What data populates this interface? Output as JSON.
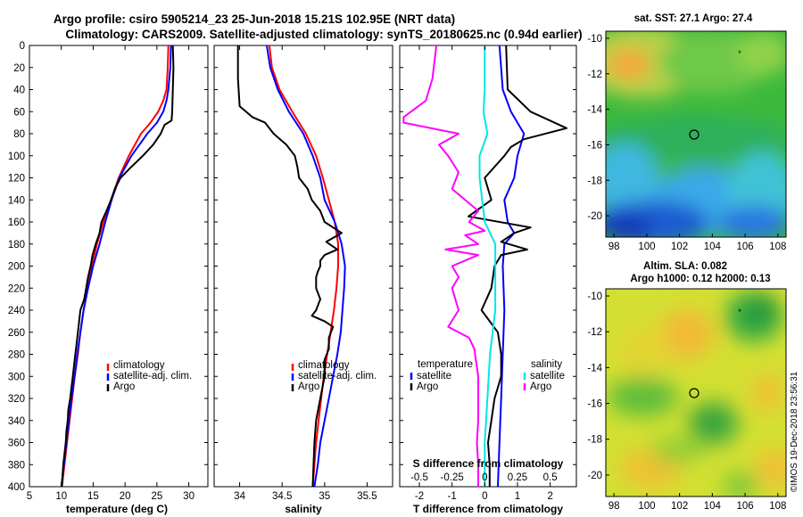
{
  "figure": {
    "title_line1": "Argo profile: csiro 5905214_23 25-Jun-2018 15.21S 102.95E (NRT data)",
    "title_line2": "Climatology: CARS2009. Satellite-adjusted climatology: synTS_20180625.nc (0.94d earlier)",
    "watermark": "©IMOS 19-Dec-2018 23:56:31"
  },
  "colors": {
    "climatology": "#ff0000",
    "satellite": "#0000ff",
    "argo": "#000000",
    "sat_sal": "#00e5ee",
    "argo_sal": "#ff00ff"
  },
  "chart_data": [
    {
      "type": "line",
      "title": "",
      "xlabel": "temperature (deg C)",
      "ylabel": "",
      "xlim": [
        5,
        33
      ],
      "ylim": [
        400,
        0
      ],
      "xticks": [
        "5",
        "10",
        "15",
        "20",
        "25",
        "30"
      ],
      "xtick_values": [
        5,
        10,
        15,
        20,
        25,
        30
      ],
      "yticks": [
        "0",
        "20",
        "40",
        "60",
        "80",
        "100",
        "120",
        "140",
        "160",
        "180",
        "200",
        "220",
        "240",
        "260",
        "280",
        "300",
        "320",
        "340",
        "360",
        "380",
        "400"
      ],
      "yaxis_shared": true,
      "legend": [
        "climatology",
        "satellite-adj. clim.",
        "Argo"
      ],
      "series": [
        {
          "name": "climatology",
          "color": "climatology",
          "depth": [
            0,
            20,
            40,
            50,
            60,
            70,
            80,
            100,
            120,
            140,
            160,
            180,
            200,
            220,
            240,
            260,
            280,
            300,
            320,
            340,
            360,
            380,
            400
          ],
          "values": [
            26.8,
            26.7,
            26.5,
            26.0,
            25.2,
            24.0,
            22.5,
            20.6,
            19.0,
            17.8,
            16.6,
            15.6,
            14.8,
            14.1,
            13.5,
            13.0,
            12.6,
            12.1,
            11.7,
            11.3,
            10.9,
            10.5,
            10.1
          ]
        },
        {
          "name": "satellite-adj. clim.",
          "color": "satellite",
          "depth": [
            0,
            20,
            40,
            50,
            60,
            70,
            80,
            100,
            120,
            140,
            160,
            180,
            200,
            220,
            240,
            260,
            280,
            300,
            320,
            340,
            360,
            380,
            400
          ],
          "values": [
            27.2,
            27.1,
            26.8,
            26.5,
            26.0,
            25.0,
            23.5,
            21.0,
            19.1,
            17.9,
            16.9,
            16.0,
            15.0,
            14.2,
            13.5,
            13.0,
            12.5,
            12.1,
            11.6,
            11.2,
            10.8,
            10.4,
            10.0
          ]
        },
        {
          "name": "Argo",
          "color": "argo",
          "depth": [
            0,
            20,
            40,
            60,
            68,
            72,
            80,
            90,
            100,
            110,
            120,
            130,
            140,
            150,
            160,
            170,
            180,
            190,
            200,
            210,
            220,
            230,
            240,
            250,
            260,
            270,
            280,
            290,
            300,
            310,
            320,
            330,
            340,
            350,
            360,
            370,
            380,
            390,
            400
          ],
          "values": [
            27.5,
            27.6,
            27.5,
            27.4,
            27.3,
            26.2,
            25.6,
            24.4,
            22.8,
            21.0,
            19.3,
            18.4,
            17.8,
            17.1,
            16.3,
            16.0,
            15.4,
            14.9,
            14.6,
            14.2,
            13.9,
            13.6,
            13.0,
            12.8,
            12.6,
            12.4,
            12.2,
            12.0,
            11.8,
            11.6,
            11.4,
            11.1,
            11.0,
            10.8,
            10.7,
            10.5,
            10.3,
            10.2,
            10.1
          ]
        }
      ]
    },
    {
      "type": "line",
      "xlabel": "salinity",
      "xlim": [
        33.7,
        35.8
      ],
      "ylim": [
        400,
        0
      ],
      "xticks": [
        "34",
        "34.5",
        "35",
        "35.5"
      ],
      "xtick_values": [
        34,
        34.5,
        35,
        35.5
      ],
      "legend": [
        "climatology",
        "satellite-adj. clim.",
        "Argo"
      ],
      "series": [
        {
          "name": "climatology",
          "color": "climatology",
          "depth": [
            0,
            20,
            40,
            60,
            80,
            100,
            120,
            140,
            160,
            180,
            200,
            220,
            240,
            260,
            280,
            300,
            320,
            340,
            360,
            380,
            400
          ],
          "values": [
            34.35,
            34.38,
            34.47,
            34.62,
            34.78,
            34.9,
            34.98,
            35.05,
            35.12,
            35.16,
            35.16,
            35.14,
            35.11,
            35.07,
            35.03,
            34.99,
            34.96,
            34.93,
            34.9,
            34.88,
            34.86
          ]
        },
        {
          "name": "satellite-adj. clim.",
          "color": "satellite",
          "depth": [
            0,
            20,
            40,
            60,
            80,
            100,
            120,
            140,
            160,
            180,
            200,
            220,
            240,
            260,
            280,
            300,
            320,
            340,
            360,
            380,
            400
          ],
          "values": [
            34.32,
            34.36,
            34.45,
            34.58,
            34.75,
            34.86,
            34.95,
            35.0,
            35.12,
            35.2,
            35.24,
            35.23,
            35.21,
            35.19,
            35.15,
            35.1,
            35.05,
            35.0,
            34.95,
            34.92,
            34.88
          ]
        },
        {
          "name": "Argo",
          "color": "argo",
          "depth": [
            0,
            30,
            55,
            65,
            70,
            80,
            90,
            100,
            110,
            120,
            130,
            140,
            150,
            160,
            165,
            170,
            178,
            185,
            190,
            195,
            200,
            205,
            210,
            220,
            230,
            240,
            245,
            250,
            255,
            265,
            275,
            285,
            300,
            320,
            340,
            360,
            380,
            400
          ],
          "values": [
            33.98,
            33.98,
            34.0,
            34.15,
            34.3,
            34.4,
            34.55,
            34.65,
            34.68,
            34.7,
            34.8,
            34.85,
            34.95,
            35.0,
            35.1,
            35.2,
            35.02,
            35.15,
            35.0,
            34.95,
            34.95,
            34.92,
            34.9,
            34.9,
            34.95,
            34.9,
            34.85,
            35.0,
            35.1,
            35.05,
            35.05,
            35.0,
            35.0,
            34.95,
            34.9,
            34.88,
            34.87,
            34.86
          ]
        }
      ]
    },
    {
      "type": "line",
      "xlabel": "T difference from climatology",
      "xlabel_top": "S difference from climatology",
      "xlim": [
        -2.6,
        2.8
      ],
      "xlim_top": [
        -0.65,
        0.7
      ],
      "ylim": [
        400,
        0
      ],
      "xticks": [
        "-2",
        "-1",
        "0",
        "1",
        "2"
      ],
      "xtick_values": [
        -2,
        -1,
        0,
        1,
        2
      ],
      "xticks_top": [
        "-0.5",
        "-0.25",
        "0",
        "0.25",
        "0.5"
      ],
      "xtick_values_top": [
        -0.5,
        -0.25,
        0,
        0.25,
        0.5
      ],
      "legend_left_title": "temperature",
      "legend_left": [
        "satellite",
        "Argo"
      ],
      "legend_right_title": "salinity",
      "legend_right": [
        "satellite",
        "Argo"
      ],
      "series": [
        {
          "name": "temperature satellite",
          "color": "satellite",
          "axis": "bottom",
          "depth": [
            0,
            40,
            60,
            70,
            80,
            100,
            120,
            140,
            160,
            170,
            180,
            200,
            240,
            280,
            320,
            360,
            400
          ],
          "values": [
            0.45,
            0.55,
            0.8,
            1.0,
            1.2,
            1.0,
            0.9,
            0.6,
            0.7,
            0.9,
            0.6,
            0.55,
            0.6,
            0.55,
            0.5,
            0.45,
            0.4
          ]
        },
        {
          "name": "temperature Argo",
          "color": "argo",
          "axis": "bottom",
          "depth": [
            0,
            40,
            60,
            75,
            85,
            92,
            100,
            120,
            140,
            155,
            165,
            170,
            178,
            185,
            190,
            200,
            220,
            240,
            260,
            280,
            300,
            320,
            340,
            360,
            380,
            400
          ],
          "values": [
            0.65,
            0.7,
            1.4,
            2.5,
            1.2,
            0.8,
            0.6,
            0.0,
            0.2,
            -0.5,
            1.4,
            0.9,
            0.5,
            1.3,
            0.5,
            0.3,
            0.2,
            -0.1,
            0.4,
            0.5,
            0.5,
            0.3,
            0.2,
            0.1,
            0.15,
            0.15
          ]
        },
        {
          "name": "salinity satellite",
          "color": "sat_sal",
          "axis": "top",
          "depth": [
            0,
            40,
            60,
            80,
            100,
            120,
            140,
            160,
            180,
            200,
            240,
            280,
            320,
            360,
            400
          ],
          "values": [
            0.0,
            0.0,
            -0.01,
            0.02,
            -0.04,
            -0.04,
            -0.02,
            0.0,
            0.08,
            0.08,
            0.08,
            0.04,
            0.02,
            0.0,
            0.0
          ]
        },
        {
          "name": "salinity Argo",
          "color": "argo_sal",
          "axis": "top",
          "depth": [
            0,
            30,
            50,
            65,
            70,
            80,
            90,
            100,
            115,
            130,
            140,
            150,
            160,
            168,
            172,
            180,
            185,
            190,
            200,
            210,
            220,
            240,
            255,
            265,
            275,
            300,
            320,
            340,
            360,
            380,
            400
          ],
          "values": [
            -0.37,
            -0.4,
            -0.45,
            -0.62,
            -0.62,
            -0.2,
            -0.35,
            -0.28,
            -0.2,
            -0.25,
            -0.15,
            -0.05,
            -0.12,
            0.0,
            -0.15,
            -0.05,
            -0.3,
            -0.05,
            -0.25,
            -0.2,
            -0.25,
            -0.2,
            -0.28,
            -0.12,
            -0.08,
            -0.05,
            -0.05,
            -0.05,
            -0.06,
            -0.05,
            -0.05
          ]
        }
      ]
    },
    {
      "type": "heatmap",
      "title": "sat. SST: 27.1  Argo: 27.4",
      "xlim": [
        97.5,
        108.5
      ],
      "ylim": [
        -21.2,
        -9.6
      ],
      "xticks": [
        "98",
        "100",
        "102",
        "104",
        "106",
        "108"
      ],
      "xtick_values": [
        98,
        100,
        102,
        104,
        106,
        108
      ],
      "yticks": [
        "-10",
        "-12",
        "-14",
        "-16",
        "-18",
        "-20"
      ],
      "ytick_values": [
        -10,
        -12,
        -14,
        -16,
        -18,
        -20
      ],
      "marker": {
        "lon": 102.95,
        "lat": -15.21
      }
    },
    {
      "type": "heatmap",
      "title_line1": "Altim. SLA: 0.082",
      "title_line2": "Argo h1000: 0.12 h2000: 0.13",
      "xlim": [
        97.5,
        108.5
      ],
      "ylim": [
        -21.2,
        -9.6
      ],
      "xticks": [
        "98",
        "100",
        "102",
        "104",
        "106",
        "108"
      ],
      "xtick_values": [
        98,
        100,
        102,
        104,
        106,
        108
      ],
      "yticks": [
        "-10",
        "-12",
        "-14",
        "-16",
        "-18",
        "-20"
      ],
      "ytick_values": [
        -10,
        -12,
        -14,
        -16,
        -18,
        -20
      ],
      "marker": {
        "lon": 102.95,
        "lat": -15.21
      }
    }
  ]
}
